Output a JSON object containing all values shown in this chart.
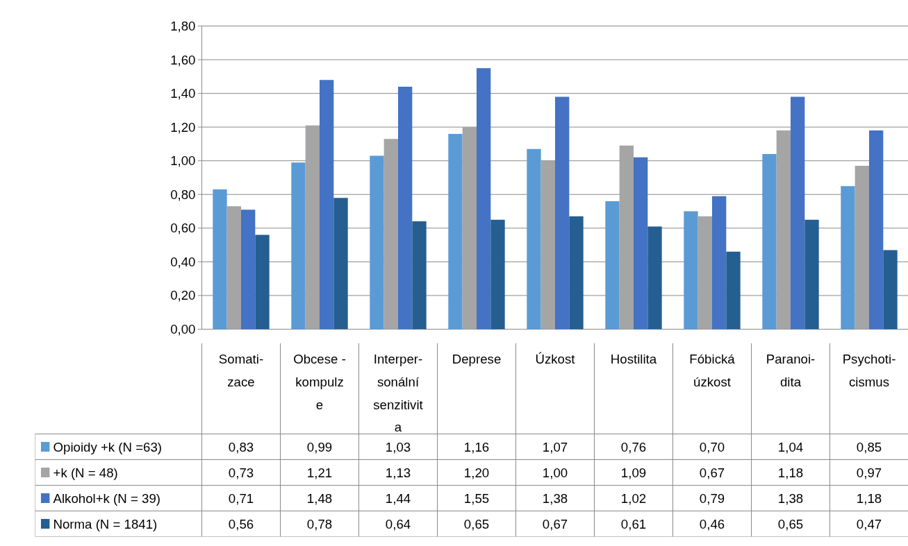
{
  "chart_data": {
    "type": "bar",
    "categories": [
      "Somati-\nzace",
      "Obcese -\nkompulz\ne",
      "Interper-\nsonální\nsenzitivit\na",
      "Deprese",
      "Úzkost",
      "Hostilita",
      "Fóbická\núzkost",
      "Paranoi-\ndita",
      "Psychoti-\ncismus"
    ],
    "series": [
      {
        "name": "Opioidy +k (N =63)",
        "color": "#5b9bd5",
        "values": [
          0.83,
          0.99,
          1.03,
          1.16,
          1.07,
          0.76,
          0.7,
          1.04,
          0.85
        ],
        "value_labels": [
          "0,83",
          "0,99",
          "1,03",
          "1,16",
          "1,07",
          "0,76",
          "0,70",
          "1,04",
          "0,85"
        ]
      },
      {
        "name": "+k (N = 48)",
        "color": "#a5a5a5",
        "values": [
          0.73,
          1.21,
          1.13,
          1.2,
          1.0,
          1.09,
          0.67,
          1.18,
          0.97
        ],
        "value_labels": [
          "0,73",
          "1,21",
          "1,13",
          "1,20",
          "1,00",
          "1,09",
          "0,67",
          "1,18",
          "0,97"
        ]
      },
      {
        "name": "Alkohol+k (N = 39)",
        "color": "#4472c4",
        "values": [
          0.71,
          1.48,
          1.44,
          1.55,
          1.38,
          1.02,
          0.79,
          1.38,
          1.18
        ],
        "value_labels": [
          "0,71",
          "1,48",
          "1,44",
          "1,55",
          "1,38",
          "1,02",
          "0,79",
          "1,38",
          "1,18"
        ]
      },
      {
        "name": "Norma (N = 1841)",
        "color": "#255e91",
        "values": [
          0.56,
          0.78,
          0.64,
          0.65,
          0.67,
          0.61,
          0.46,
          0.65,
          0.47
        ],
        "value_labels": [
          "0,56",
          "0,78",
          "0,64",
          "0,65",
          "0,67",
          "0,61",
          "0,46",
          "0,65",
          "0,47"
        ]
      }
    ],
    "ylim": [
      0,
      1.8
    ],
    "yticks": [
      {
        "value": 0,
        "label": "0,00"
      },
      {
        "value": 0.2,
        "label": "0,20"
      },
      {
        "value": 0.4,
        "label": "0,40"
      },
      {
        "value": 0.6,
        "label": "0,60"
      },
      {
        "value": 0.8,
        "label": "0,80"
      },
      {
        "value": 1.0,
        "label": "1,00"
      },
      {
        "value": 1.2,
        "label": "1,20"
      },
      {
        "value": 1.4,
        "label": "1,40"
      },
      {
        "value": 1.6,
        "label": "1,60"
      },
      {
        "value": 1.8,
        "label": "1,80"
      }
    ],
    "grid": "y",
    "legend": "bottom left"
  }
}
